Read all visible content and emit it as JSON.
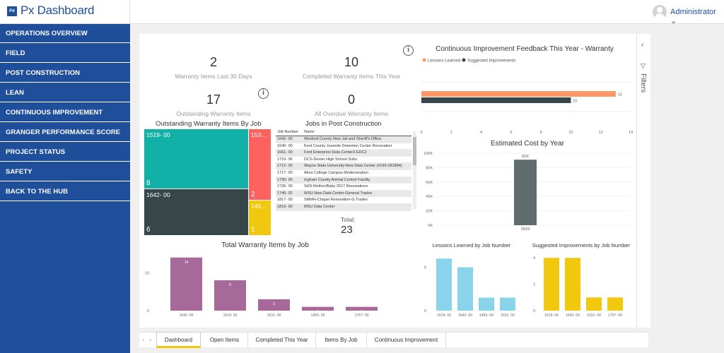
{
  "app": {
    "logo": "Pd",
    "title": "Px Dashboard",
    "user": "Administrator ⌄"
  },
  "sidebar": {
    "items": [
      "OPERATIONS OVERVIEW",
      "FIELD",
      "POST CONSTRUCTION",
      "LEAN",
      "CONTINUOUS IMPROVEMENT",
      "GRANGER PERFORMANCE SCORE",
      "PROJECT STATUS",
      "SAFETY",
      "BACK TO THE HUB"
    ]
  },
  "kpis": [
    {
      "value": "2",
      "label": "Warranty Items Last 30 Days"
    },
    {
      "value": "10",
      "label": "Completed Warranty Items This Year"
    },
    {
      "value": "17",
      "label": "Outstanding Warranty Items"
    },
    {
      "value": "0",
      "label": "All Overdue Warranty Items"
    }
  ],
  "info_icon": "i",
  "treemap": {
    "title": "Outstanding Warranty Items By Job",
    "tiles": [
      {
        "job": "1519- 00",
        "count": "8",
        "color": "#12b1a8"
      },
      {
        "job": "1642- 00",
        "count": "6",
        "color": "#374649"
      },
      {
        "job": "153...",
        "count": "2",
        "color": "#fd625e"
      },
      {
        "job": "145...",
        "count": "1",
        "color": "#f2c80f"
      }
    ]
  },
  "jobs_table": {
    "title": "Jobs in Post Construction",
    "headers": [
      "Job Number",
      "Name"
    ],
    "rows": [
      [
        "1642- 00",
        "Wexford County New Jail and Sheriff's Office"
      ],
      [
        "1646- 00",
        "Kent County Juvenile Detention Center Renovation"
      ],
      [
        "1661- 00",
        "Ford Enterprise Data Center2-EDC2"
      ],
      [
        "1710- 06",
        "DCS-Dexter High School Subs"
      ],
      [
        "1712- 00",
        "Wayne State University-New Data Center (#193-281894)"
      ],
      [
        "1717- 00",
        "Alma College Campus Modernization"
      ],
      [
        "1730- 00",
        "Ingham County Animal Control Facility"
      ],
      [
        "1736- 00",
        "SHS-Mother/Baby 2017 Renovations"
      ],
      [
        "1746- 02",
        "WSU New Data Center-General Trades"
      ],
      [
        "1817- 00",
        "SMMH-Chapel Renovation-G.Trades"
      ],
      [
        "1819- 00",
        "MSU Data Center"
      ]
    ],
    "total_label": "Total:",
    "total_value": "23"
  },
  "chart_data": [
    {
      "id": "feedback",
      "type": "bar",
      "title": "Continuous Improvement Feedback This Year - Warranty",
      "legend": [
        "Lessons Learned",
        "Suggested Improvements"
      ],
      "series": [
        {
          "name": "Lessons Learned",
          "values": [
            13
          ],
          "color": "#fe9666"
        },
        {
          "name": "Suggested Improvements",
          "values": [
            10
          ],
          "color": "#374649"
        }
      ],
      "xlim": [
        0,
        14
      ],
      "ticks": [
        "0",
        "2",
        "4",
        "6",
        "8",
        "10",
        "12",
        "14"
      ],
      "data_labels": [
        "13",
        "10"
      ]
    },
    {
      "id": "cost",
      "type": "bar",
      "title": "Estimated Cost by Year",
      "categories": [
        "2019"
      ],
      "values": [
        91
      ],
      "data_labels": [
        "91K"
      ],
      "yticks": [
        "0K",
        "20K",
        "40K",
        "60K",
        "80K",
        "100K"
      ],
      "ylim": [
        0,
        100
      ],
      "color": "#5f6b6d"
    },
    {
      "id": "warranty",
      "type": "bar",
      "title": "Total Warranty Items by Job",
      "categories": [
        "1642- 00",
        "1519- 00",
        "1531- 00",
        "1455- 00",
        "1757- 00"
      ],
      "values": [
        14,
        8,
        3,
        1,
        1
      ],
      "data_labels": [
        "14",
        "8",
        "3",
        "1",
        "1"
      ],
      "yticks": [
        "0",
        "10"
      ],
      "ylim": [
        0,
        16
      ],
      "color": "#a66999"
    },
    {
      "id": "lessons",
      "type": "bar",
      "title": "Lessons Learned by Job Number",
      "categories": [
        "1519- 00",
        "1642- 00",
        "1455- 00",
        "1531- 00"
      ],
      "values": [
        6,
        5,
        1.5,
        1.5
      ],
      "yticks": [
        "0",
        "5"
      ],
      "ylim": [
        0,
        7
      ],
      "color": "#8ad4eb"
    },
    {
      "id": "suggested",
      "type": "bar",
      "title": "Suggested Improvements by Job Number",
      "categories": [
        "1519- 00",
        "1642- 00",
        "1531- 00",
        "1757- 00"
      ],
      "values": [
        4,
        4,
        1,
        1
      ],
      "yticks": [
        "0",
        "2",
        "4"
      ],
      "ylim": [
        0,
        4.6
      ],
      "color": "#f2c80f"
    }
  ],
  "filters": {
    "label": "Filters"
  },
  "tabs": {
    "prev": "‹",
    "next": "›",
    "items": [
      "Dashboard",
      "Open Items",
      "Completed This Year",
      "Items By Job",
      "Continuous Improvement"
    ]
  }
}
